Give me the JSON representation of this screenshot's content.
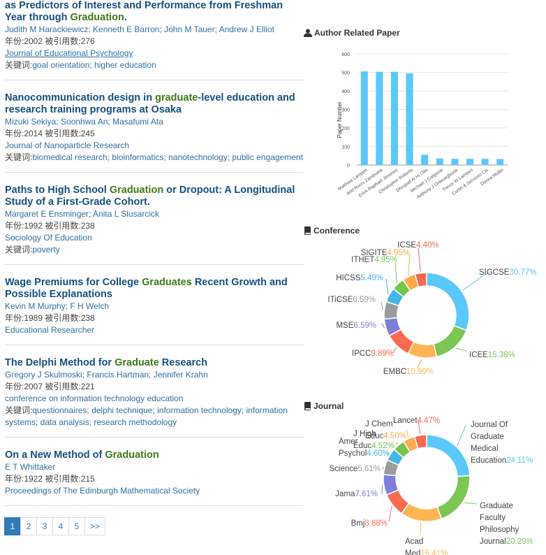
{
  "papers": [
    {
      "title_parts": [
        {
          "t": "as Predictors of Interest and Performance from Freshman Year through ",
          "h": false
        },
        {
          "t": "Graduation",
          "h": true
        },
        {
          "t": ".",
          "h": false
        }
      ],
      "authors": "Judith M Harackiewicz; Kenneth E Barron; John M Tauer; Andrew J Elliot",
      "meta": "年份:2002  被引用数:276",
      "venue": "Journal of Educational Psychology",
      "venue_underline": true,
      "kw_label": "关键词:",
      "keywords": "goal orientation; higher education"
    },
    {
      "title_parts": [
        {
          "t": "Nanocommunication design in ",
          "h": false
        },
        {
          "t": "graduate",
          "h": true
        },
        {
          "t": "-level education and research training programs at Osaka",
          "h": false
        }
      ],
      "authors": "Mizuki Sekiya; Soonhwa An; Masafumi Ata",
      "meta": "年份:2014  被引用数:245",
      "venue": "Journal of Nanoparticle Research",
      "venue_underline": false,
      "kw_label": "关键词:",
      "keywords": "biomedical research; bioinformatics; nanotechnology; public engagement"
    },
    {
      "title_parts": [
        {
          "t": "Paths to High School ",
          "h": false
        },
        {
          "t": "Graduation",
          "h": true
        },
        {
          "t": " or Dropout: A Longitudinal Study of a First-Grade Cohort.",
          "h": false
        }
      ],
      "authors": "Margaret E Ensminger; Anita L Slusarcick",
      "meta": "年份:1992  被引用数:238",
      "venue": "Sociology Of Education",
      "venue_underline": false,
      "kw_label": "关键词:",
      "keywords": "poverty"
    },
    {
      "title_parts": [
        {
          "t": "Wage Premiums for College ",
          "h": false
        },
        {
          "t": "Graduates",
          "h": true
        },
        {
          "t": " Recent Growth and Possible Explanations",
          "h": false
        }
      ],
      "authors": "Kevin M Murphy; F H Welch",
      "meta": "年份:1989  被引用数:238",
      "venue": "Educational Researcher",
      "venue_underline": false,
      "kw_label": "",
      "keywords": ""
    },
    {
      "title_parts": [
        {
          "t": "The Delphi Method for ",
          "h": false
        },
        {
          "t": "Graduate",
          "h": true
        },
        {
          "t": " Research",
          "h": false
        }
      ],
      "authors": "Gregory J Skulmoski; Francis Hartman; Jennifer Krahn",
      "meta": "年份:2007  被引用数:221",
      "venue": "conference on information technology education",
      "venue_underline": false,
      "kw_label": "关键词:",
      "keywords": "questionnaires; delphi technique; information technology; information systems; data analysis; research methodology"
    },
    {
      "title_parts": [
        {
          "t": "On a New Method of ",
          "h": false
        },
        {
          "t": "Graduation",
          "h": true
        }
      ],
      "authors": "E T Whittaker",
      "meta": "年份:1922  被引用数:215",
      "venue": "Proceedings of The Edinburgh Mathematical Society",
      "venue_underline": false,
      "kw_label": "",
      "keywords": ""
    }
  ],
  "pagination": [
    "1",
    "2",
    "3",
    "4",
    "5",
    ">>"
  ],
  "author_panel": {
    "title": "Author Related Paper",
    "icon": "user-icon"
  },
  "conference_panel": {
    "title": "Conference",
    "icon": "book-icon"
  },
  "journal_panel": {
    "title": "Journal",
    "icon": "book-icon"
  },
  "colors": {
    "accent": "#337ab7",
    "highlight": "#3e7a16",
    "title": "#14507e",
    "bar": "#5ac8fa"
  },
  "chart_data": [
    {
      "type": "bar",
      "ylabel": "Paper Number",
      "ylim": [
        0,
        600
      ],
      "yticks": [
        0,
        100,
        200,
        300,
        400,
        500,
        600
      ],
      "categories": [
        "Matthew Lampert",
        "And Rocio Zambrana",
        "Erick Raphael Jimenez",
        "Christopher Roberts",
        "Dhrupad Ai Hi Olm",
        "Michael J Galgocie",
        "Anthony J Onwuegbuzie",
        "Trevor W Lambert",
        "Curtin & Services Cis",
        "Donna Mullin"
      ],
      "values": [
        505,
        503,
        503,
        495,
        55,
        35,
        33,
        33,
        33,
        32
      ]
    },
    {
      "type": "pie",
      "donut": true,
      "title": "Conference",
      "labels": [
        "SIGCSE",
        "ICEE",
        "EMBC",
        "IPCC",
        "MSE",
        "ITiCSE",
        "HICSS",
        "ITHET",
        "SIGITE",
        "ICSE"
      ],
      "values": [
        30.77,
        15.38,
        10.99,
        9.89,
        6.59,
        6.59,
        5.49,
        4.95,
        4.95,
        4.4
      ],
      "display": [
        "30.77%",
        "15.38%",
        "10.99%",
        "9.89%",
        "6.59%",
        "6.59%",
        "5.49%",
        "4.95%",
        "4.95%",
        "4.40%"
      ],
      "colors": [
        "#5ac8fa",
        "#7cc653",
        "#ffb552",
        "#fc6b50",
        "#7b7fd8",
        "#9b9b9b",
        "#44b5ea",
        "#72c64e",
        "#ffaa4b",
        "#f5694f"
      ]
    },
    {
      "type": "pie",
      "donut": true,
      "title": "Journal",
      "labels": [
        "Journal Of Graduate Medical Education",
        "Graduate Faculty Philosophy Journal",
        "Acad Med",
        "Bmj",
        "Jama",
        "Science",
        "Amer Psychol",
        "J High Educ",
        "J Chem Educ",
        "Lancet"
      ],
      "values": [
        24.11,
        20.29,
        15.41,
        8.88,
        7.61,
        5.61,
        4.6,
        4.52,
        4.5,
        4.47
      ],
      "display": [
        "24.11%",
        "20.29%",
        "15.41%",
        "8.88%",
        "7.61%",
        "5.61%",
        "4.60%",
        "4.52%",
        "4.50%",
        "4.47%"
      ],
      "colors": [
        "#5ac8fa",
        "#7cc653",
        "#ffb552",
        "#fc6b50",
        "#7b7fd8",
        "#9b9b9b",
        "#44b5ea",
        "#72c64e",
        "#ffaa4b",
        "#f5694f"
      ]
    }
  ]
}
